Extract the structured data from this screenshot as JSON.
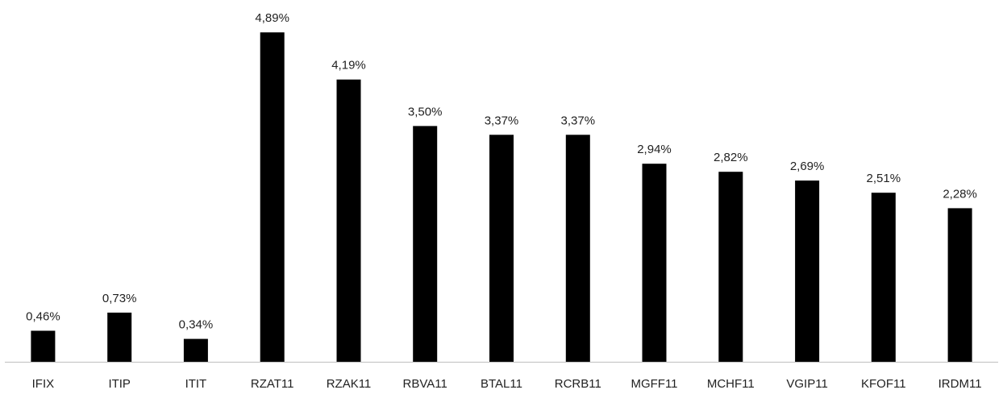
{
  "chart_data": {
    "type": "bar",
    "title": "",
    "xlabel": "",
    "ylabel": "",
    "categories": [
      "IFIX",
      "ITIP",
      "ITIT",
      "RZAT11",
      "RZAK11",
      "RBVA11",
      "BTAL11",
      "RCRB11",
      "MGFF11",
      "MCHF11",
      "VGIP11",
      "KFOF11",
      "IRDM11"
    ],
    "values": [
      0.46,
      0.73,
      0.34,
      4.89,
      4.19,
      3.5,
      3.37,
      3.37,
      2.94,
      2.82,
      2.69,
      2.51,
      2.28
    ],
    "value_labels": [
      "0,46%",
      "0,73%",
      "0,34%",
      "4,89%",
      "4,19%",
      "3,50%",
      "3,37%",
      "3,37%",
      "2,94%",
      "2,82%",
      "2,69%",
      "2,51%",
      "2,28%"
    ],
    "ylim": [
      0,
      5.0
    ],
    "grid": false,
    "legend": "none",
    "bar_color": "#000000"
  }
}
